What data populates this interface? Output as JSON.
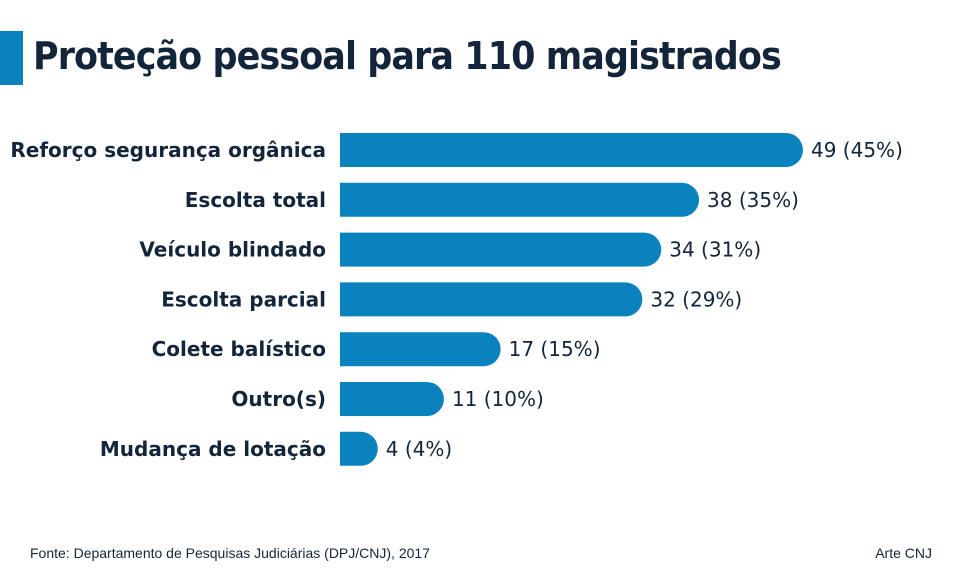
{
  "accent_color": "#0a82bd",
  "chart_data": {
    "type": "bar",
    "orientation": "horizontal",
    "title": "Proteção pessoal para 110 magistrados",
    "categories": [
      "Reforço segurança orgânica",
      "Escolta total",
      "Veículo blindado",
      "Escolta parcial",
      "Colete balístico",
      "Outro(s)",
      "Mudança de lotação"
    ],
    "values": [
      49,
      38,
      34,
      32,
      17,
      11,
      4
    ],
    "percentages": [
      45,
      35,
      31,
      29,
      15,
      10,
      4
    ],
    "labels": [
      "49 (45%)",
      "38 (35%)",
      "34 (31%)",
      "32 (29%)",
      "17 (15%)",
      "11 (10%)",
      "4 (4%)"
    ],
    "xlabel": "",
    "ylabel": "",
    "xlim": [
      0,
      49
    ],
    "grid": false,
    "bar_color": "#0a82bd"
  },
  "footer": {
    "source": "Fonte: Departamento de Pesquisas Judiciárias (DPJ/CNJ), 2017",
    "credit": "Arte CNJ"
  }
}
